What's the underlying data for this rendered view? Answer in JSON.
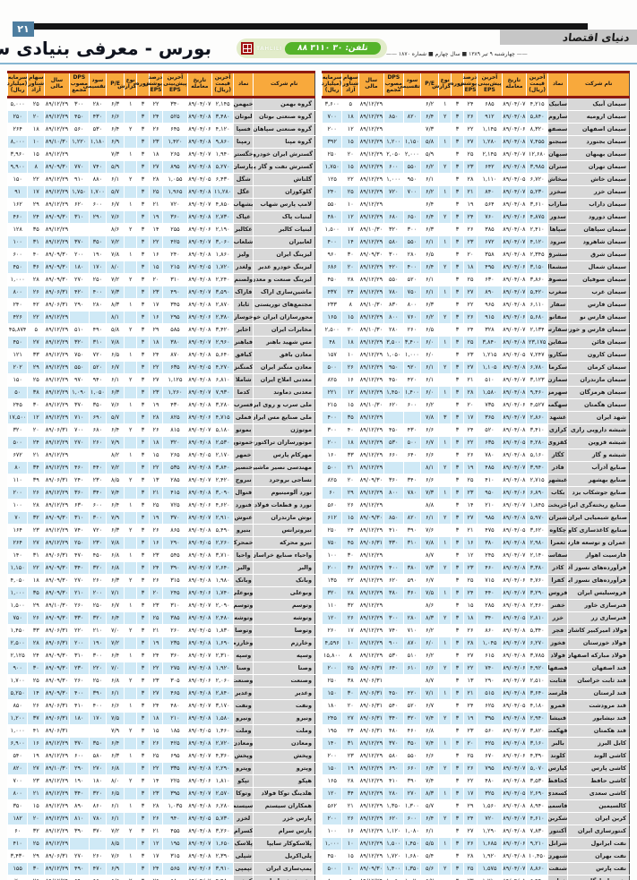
{
  "page": {
    "number": "۲۱",
    "logo": "دنیای اقتصاد",
    "dateline": "چهارشنبه ۹ تیر ۱۳۸۹ ■ سال چهارم ■ شماره ۱۸۷۰",
    "title": "بورس - معرفی بنیادی سهام",
    "phone": "تلفن: ۳۰ ۳۱۱۰ ۸۸",
    "watermark": "TAHLILI"
  },
  "colors": {
    "accent_orange": "#f8a93c",
    "dark_red": "#8e1a10",
    "row_blue": "#cfe9f6",
    "name_gray": "#d8d8d8",
    "badge_green": "#55b32a"
  },
  "table": {
    "columns": [
      {
        "label": "نام شرکت",
        "width": 20
      },
      {
        "label": "نماد",
        "width": 6.5
      },
      {
        "label": "آخرین\nقیمت\n(ریال)",
        "width": 7
      },
      {
        "label": "تاریخ\nمعامله",
        "width": 8
      },
      {
        "label": "آخرین پیش‌بینی\nEPS",
        "width": 8
      },
      {
        "label": "درصد\nپوشش\nEPS",
        "width": 4.5
      },
      {
        "label": "دوره",
        "width": 4
      },
      {
        "label": "نوع\nگزارش",
        "width": 4
      },
      {
        "label": "P/E",
        "width": 6
      },
      {
        "label": "سود\nتقسیمی",
        "width": 5.5
      },
      {
        "label": "DPS\nمصوب مجمع",
        "width": 6.5
      },
      {
        "label": "سال مالی",
        "width": 8
      },
      {
        "label": "سهام شناور\nآزاد",
        "width": 5.5
      },
      {
        "label": "سرمایه\n(میلیارد ریال)",
        "width": 6.5
      }
    ],
    "right_rows": [
      "سیمان آبیک|سابیک|۴,۲۱۵|۸۹/۰۴/۰۷|۶۸۵|۲۴|۳|۱|۶/۲|||۸۹/۱۲/۲۹|۵|۳,۶۰۰",
      "سیمان ارومیه|ساروم|۵,۸۴۰|۸۹/۰۴/۰۸|۹۱۲|۲۶|۳|۲|۶/۴|۸۲۰|۸۵۰|۸۹/۱۲/۲۹|۱۸|۷۰۰",
      "سیمان اصفهان|سصفها|۸,۳۲۰|۸۹/۰۴/۰۶|۱,۱۴۵|۲۲|۳||۷/۳|||۸۹/۱۲/۲۹|۱۲|۲۰۰",
      "سیمان بجنورد|سبجنو|۷,۴۵۵|۸۹/۰۴/۰۸|۱,۲۸۰|۲۷|۳|۱|۵/۸|۱,۱۵۰|۱,۲۰۰|۸۹/۱۲/۲۹|۱۵|۳۹۲",
      "سیمان بهبهان|سبهان|۱۲,۶۸۰|۸۹/۰۴/۰۷|۲,۱۴۵|۲۵|۳||۵/۹|۲,۰۰۰|۲,۰۵۰|۸۹/۱۲/۲۹|۲۰|۲۵۰",
      "سیمان تهران|ستران|۳,۹۸۵|۸۹/۰۴/۰۸|۶۴۲|۲۳|۳|۲|۶/۲|۵۵۰|۶۰۰|۸۹/۱۲/۲۹|۱۵|۱,۷۵۰",
      "سیمان خاش|سخاش|۶,۷۲۰|۸۹/۰۴/۰۵|۱,۱۱۰|۲۸|۳||۶/۱|۹۵۰|۱,۰۰۰|۸۹/۱۲/۲۹|۲۲|۱۲۵",
      "سیمان خزر|سخزر|۵,۲۳۰|۸۹/۰۴/۰۷|۸۴۰|۲۱|۳|۱|۶/۲|۷۰۰|۷۲۰|۸۹/۱۲/۲۹|۲۵|۲۴۰",
      "سیمان داراب|ساراب|۳,۶۱۰|۸۹/۰۴/۰۸|۵۶۴|۱۹|۳||۶/۴|||۸۹/۱۲/۲۹|۱۰|۵۵۰",
      "سیمان دورود|سدور|۴,۸۷۵|۸۹/۰۴/۰۶|۷۶۰|۲۴|۳|۲|۶/۴|۶۵۰|۶۸۰|۸۹/۱۲/۲۹|۱۲|۴۸۰",
      "سیمان سپاهان|سپاها|۲,۴۱۰|۸۹/۰۴/۰۸|۳۸۵|۲۶|۳||۶/۳|۳۰۰|۳۲۰|۸۹/۱۰/۳۰|۱۷|۱,۵۰۰",
      "سیمان شاهرود|سرود|۴,۱۲۰|۸۹/۰۴/۰۷|۶۷۲|۲۳|۳|۱|۶/۱|۵۵۰|۵۸۰|۸۹/۱۲/۲۹|۱۴|۴۰۰",
      "سیمان شرق|سشرق|۲,۳۴۵|۸۹/۰۴/۰۸|۳۵۸|۲۰|۳||۶/۵|۲۸۰|۳۰۰|۸۹/۰۹/۳۰|۳۰|۹۶۰",
      "سیمان شمال|سشمال|۳,۱۵۰|۸۹/۰۴/۰۶|۴۹۵|۱۸|۳|۲|۶/۴|۴۰۰|۴۲۰|۸۹/۱۲/۲۹|۲۰|۶۸۶",
      "سیمان صوفیان|سصوفی|۳,۸۶۰|۸۹/۰۴/۰۸|۶۳۰|۲۵|۳||۶/۱|۵۲۰|۵۵۰|۸۹/۱۲/۲۹|۲۸|۴۵۰",
      "سیمان غرب|سغرب|۵,۴۲۰|۸۹/۰۴/۰۷|۸۹۰|۲۷|۳|۱|۶/۱|۷۵۰|۷۸۰|۸۹/۱۲/۲۹|۲۴|۴۳۷",
      "سیمان فارس|سفار|۶,۱۱۰|۸۹/۰۴/۰۸|۹۶۵|۲۲|۳||۶/۳|۸۰۰|۸۳۰|۸۹/۱۰/۳۰|۸|۲۳۳",
      "سیمان فارس نو|سفانو|۵,۶۸۰|۸۹/۰۴/۰۶|۹۱۵|۲۶|۳|۲|۶/۲|۷۶۰|۸۰۰|۸۹/۱۲/۲۹|۱۵|۱۶۵",
      "سیمان فارس و خوزستان|سفارس|۲,۱۳۴|۸۹/۰۴/۰۷|۳۲۸|۲۴|۳||۶/۵|۲۶۰|۲۸۰|۸۹/۱۰/۳۰|۲۰|۲,۵۰۰",
      "سیمان قائن|سقاین|۲۳,۱۷۵|۸۹/۰۴/۰۸|۳,۸۴۰|۲۵|۳|۱|۶/۰|۳,۴۰۰|۳,۵۰۰|۸۹/۱۲/۲۹|۱۸|۴۸",
      "سیمان کارون|سکارون|۷,۲۴۷|۸۹/۰۴/۰۵|۱,۲۱۵|۲۳|۳||۶/۰|۱,۰۰۰|۱,۰۵۰|۸۹/۱۲/۲۹|۱۰|۱۵۷",
      "سیمان کرمان|سکرما|۶,۷۸۰|۸۹/۰۴/۰۸|۱,۱۰۵|۲۷|۳|۲|۶/۱|۹۲۰|۹۵۰|۸۹/۱۲/۲۹|۲۶|۵۰۰",
      "سیمان مازندران|سمازن|۳,۱۲۳|۸۹/۰۴/۰۷|۵۱۰|۲۱|۳||۶/۱|۴۲۰|۴۵۰|۸۹/۱۲/۲۹|۱۶|۸۲۵",
      "سیمان هرمزگان|سهرمز|۹,۴۶۰|۸۹/۰۴/۰۸|۱,۵۸۰|۲۸|۳|۱|۶/۰|۱,۴۰۰|۱,۴۵۰|۸۹/۱۲/۲۹|۱۲|۲۲۱",
      "سیمان هگمتان|سهگمت|۴,۵۲۷|۸۹/۰۴/۰۶|۷۳۵|۲۰|۳||۶/۲|۶۰۰|۶۲۰|۸۹/۱۰/۳۰|۱۵|۲۱۵",
      "شهد ایران|غشهد|۲,۸۶۰|۸۹/۰۴/۰۷|۳۶۵|۱۷|۳|۳|۷/۸|||۸۹/۱۲/۲۹|۳۵|۴۰۰",
      "شیشه دارویی رازی|کرازی|۳,۴۱۰|۸۹/۰۴/۰۸|۵۲۰|۲۴|۳||۶/۶|۴۳۰|۴۵۰|۸۹/۱۲/۲۹|۴۰|۳۰۰",
      "شیشه قزوین|کقزوی|۴,۲۸۰|۸۹/۰۴/۰۵|۶۳۵|۲۲|۳|۱|۶/۷|۵۰۰|۵۳۰|۸۹/۱۲/۲۹|۱۸|۲۰۰",
      "شیشه و گاز|کگاز|۵,۱۶۰|۸۹/۰۴/۰۸|۷۸۰|۲۶|۳||۶/۶|۶۴۰|۶۶۰|۸۹/۱۲/۲۹|۳۳|۱۶۰",
      "صنایع آذرآب|فاذر|۳,۹۴۰|۸۹/۰۴/۰۷|۴۸۵|۱۹|۳|۲|۸/۱|||۸۹/۱۲/۲۹|۲۱|۵۰۰",
      "صنایع بهشهر|غبشهر|۲,۷۱۵|۸۹/۰۴/۰۸|۴۱۰|۲۵|۳||۶/۶|۳۴۰|۳۶۰|۸۹/۰۹/۳۰|۲۰|۸۲۵",
      "صنایع جوشکاب یزد|بکاب|۶,۸۹۰|۸۹/۰۴/۰۶|۹۵۰|۲۳|۳|۱|۷/۳|۷۸۰|۸۰۰|۸۹/۱۲/۲۹|۲۹|۶۰",
      "صنایع ریخته‌گری ایران|خریخت|۱,۸۴۵|۸۹/۰۴/۰۷|۲۱۰|۱۴|۳||۸/۸|||۸۹/۱۲/۲۹|۲۶|۵۶۰",
      "صنایع شیمیایی ایران|شیران|۵,۹۷۰|۸۹/۰۴/۰۸|۹۸۵|۲۷|۳|۲|۶/۱|۸۲۰|۸۵۰|۸۹/۰۹/۳۰|۱۵|۶۱۲",
      "صنایع کاغذسازی کاوه|چکاوه|۳,۶۲۰|۸۹/۰۴/۰۵|۴۷۵|۲۱|۳||۷/۶|۳۹۰|۴۱۰|۸۹/۱۲/۲۹|۲۴|۲۵۰",
      "عمران و توسعه فارس|ثعمرا|۲,۹۸۰|۸۹/۰۴/۰۸|۳۸۰|۱۶|۳|۱|۷/۸|۳۱۰|۳۳۰|۸۹/۰۶/۳۱|۴۵|۷۵۰",
      "فارسیت اهواز|سفاسی|۲,۱۴۰|۸۹/۰۴/۰۷|۲۴۵|۱۲|۳||۸/۷|||۸۹/۱۲/۲۹|۳۰|۱۰۰",
      "فرآورده‌های نسوز آذر|کاذر|۳,۳۸۰|۸۹/۰۴/۰۸|۴۶۰|۲۳|۳|۲|۷/۳|۳۸۰|۴۰۰|۸۹/۱۲/۲۹|۳۶|۲۰۰",
      "فرآورده‌های نسوز ایران|کفرا|۴,۷۶۰|۸۹/۰۴/۰۶|۷۱۵|۲۵|۳||۶/۷|۵۹۰|۶۲۰|۸۹/۱۲/۲۹|۲۲|۱۳۵",
      "فروسیلیس ایران|فروس|۳,۲۹۰|۸۹/۰۴/۰۷|۴۴۰|۲۴|۳|۱|۷/۵|۳۶۰|۳۸۰|۸۹/۱۲/۲۹|۲۸|۳۲۰",
      "فنرسازی خاور|خفنر|۲,۴۶۰|۸۹/۰۴/۰۸|۲۸۵|۱۵|۳||۸/۶|||۸۹/۱۲/۲۹|۳۲|۱۱۰",
      "فنرسازی زر|خزر|۲,۸۱۰|۸۹/۰۴/۰۵|۳۴۰|۱۸|۳|۲|۸/۳|۲۸۰|۳۰۰|۸۹/۱۲/۲۹|۲۶|۱۲۰",
      "فولاد امیرکبیر کاشان|فجر|۵,۳۴۰|۸۹/۰۴/۰۸|۸۶۰|۲۶|۳||۶/۲|۷۱۰|۷۴۰|۸۹/۱۲/۲۹|۱۷|۲۶۰",
      "فولاد خوزستان|فخوز|۶,۲۷۰|۸۹/۰۴/۰۷|۱,۰۴۵|۲۸|۳|۱|۶/۰|۸۷۰|۹۰۰|۸۹/۱۲/۲۹|۱۰|۴,۵۹۶",
      "فولاد مبارکه اصفهان|فولاد|۳,۷۸۵|۸۹/۰۴/۰۸|۶۱۵|۲۷|۳||۶/۲|۵۱۰|۵۳۰|۸۹/۱۲/۲۹|۸|۱۵,۸۰۰",
      "قند اصفهان|قصفها|۴,۹۲۰|۸۹/۰۴/۰۶|۷۴۰|۲۲|۳|۲|۶/۶|۶۱۰|۶۴۰|۸۹/۰۶/۳۱|۲۵|۲۰۰",
      "قند ثابت خراسان|قثابت|۲,۵۱۰|۸۹/۰۴/۰۷|۲۹۰|۱۳|۳||۸/۷|||۸۹/۰۶/۳۱|۳۸|۲۵۰",
      "قند لرستان|قلرست|۳,۶۴۰|۸۹/۰۴/۰۸|۵۱۵|۲۱|۳|۱|۷/۱|۴۲۰|۴۵۰|۸۹/۰۶/۳۱|۳۰|۱۵۰",
      "قند مرودشت|قمرو|۴,۱۸۰|۸۹/۰۴/۰۵|۶۲۵|۲۴|۳||۶/۷|۵۲۰|۵۴۰|۸۹/۰۶/۳۱|۲۰|۱۸۰",
      "قند نیشابور|قنیشا|۲,۹۴۰|۸۹/۰۴/۰۸|۳۹۵|۱۹|۳|۲|۷/۴|۳۲۰|۳۴۰|۸۹/۰۶/۳۱|۲۷|۲۴۵",
      "قند هکمتان|قهکمت|۳,۸۲۰|۸۹/۰۴/۰۷|۵۶۰|۲۳|۳||۶/۸|۴۶۰|۴۸۰|۸۹/۰۶/۳۱|۲۴|۱۹۵",
      "کابل البرز|بالبر|۳,۱۶۰|۸۹/۰۴/۰۸|۴۲۵|۲۰|۳|۱|۷/۴|۳۵۰|۳۷۰|۸۹/۱۲/۲۹|۳۱|۱۴۰",
      "کاشی الوند|کلوند|۴,۳۹۰|۸۹/۰۴/۰۶|۶۷۰|۲۵|۳||۶/۶|۵۵۰|۵۸۰|۸۹/۱۲/۲۹|۲۳|۲۰۰",
      "کاشی پارس|کپارس|۵,۰۷۰|۸۹/۰۴/۰۷|۷۹۵|۲۶|۳|۲|۶/۴|۶۶۰|۶۹۰|۸۹/۱۲/۲۹|۱۹|۱۵۰",
      "کاشی حافظ|کحافظ|۳,۵۳۰|۸۹/۰۴/۰۸|۴۸۰|۲۲|۳||۷/۴|۳۹۰|۴۱۰|۸۹/۱۲/۲۹|۲۸|۱۶۵",
      "کاشی سعدی|کسعدی|۲,۶۹۰|۸۹/۰۴/۰۵|۳۲۵|۱۷|۳|۱|۸/۳|۲۷۰|۲۸۰|۸۹/۱۲/۲۹|۳۴|۱۲۰",
      "کالسیمین|فاسمین|۸,۹۴۰|۸۹/۰۴/۰۸|۱,۵۶۰|۲۹|۳||۵/۷|۱,۳۰۰|۱,۳۵۰|۸۹/۱۲/۲۹|۲۱|۵۶۲",
      "کربن ایران|شکربن|۴,۶۱۰|۸۹/۰۴/۰۷|۷۲۰|۲۴|۳|۲|۶/۴|۶۰۰|۶۲۰|۸۹/۱۲/۲۹|۲۶|۲۰۰",
      "کنتورسازی ایران|آکنتور|۷,۸۳۰|۸۹/۰۴/۰۸|۱,۲۹۰|۲۷|۳||۶/۱|۱,۰۸۰|۱,۱۲۰|۸۹/۱۲/۲۹|۱۶|۱۰۰",
      "نفت ایرانول|شرانل|۹,۲۱۰|۸۹/۰۴/۰۶|۱,۶۸۵|۲۶|۳|۱|۵/۵|۱,۴۵۰|۱,۵۰۰|۸۹/۱۲/۲۹|۱۰|۱,۰۰۰",
      "نفت بهران|شبهرن|۱۰,۴۵۰|۸۹/۰۴/۰۸|۱,۹۲۰|۲۸|۳||۵/۴|۱,۶۸۰|۱,۷۲۰|۸۹/۱۲/۲۹|۱۵|۴۵۰",
      "نفت پارس|شنفت|۸,۸۶۰|۸۹/۰۴/۰۷|۱,۵۷۵|۲۵|۳|۲|۵/۶|۱,۳۵۰|۱,۴۰۰|۸۹/۰۹/۳۰|۱۰|۵۰۰",
      "نفت پاسارگاد|شپاس|۶,۹۴۰|۸۹/۰۴/۰۸|۱,۲۱۰|۲۳|۳||۵/۷|۱,۰۲۰|۱,۰۶۰|۸۹/۱۲/۲۹|۵|۸۰۰",
      "نفت سپاهان|شسپا|۷,۶۲۰|۸۹/۰۴/۰۵|۱,۳۶۵|۲۷|۳|۱|۵/۶|۱,۱۵۰|۱,۲۰۰|۸۹/۱۲/۲۹|۱۰|۶۶۰"
    ],
    "left_rows": [
      "گروه بهمن|خبهمن|۲,۱۴۵|۸۹/۰۴/۰۷|۳۴۰|۲۲|۳|۱|۶/۳|۲۸۰|۳۰۰|۸۹/۱۲/۲۹|۲۵|۵,۰۰۰",
      "گروه صنعتی بوتان|لبوتان|۳,۴۸۰|۸۹/۰۴/۰۸|۵۲۵|۲۴|۳||۶/۶|۴۳۰|۴۵۰|۸۹/۱۲/۲۹|۲۰|۲۵۰",
      "گروه صنعتی سپاهان|فسپا|۴,۱۲۰|۸۹/۰۴/۰۶|۶۴۵|۲۶|۳|۲|۶/۴|۵۳۰|۵۶۰|۸۹/۱۲/۲۹|۱۸|۲۶۴",
      "گروه مپنا|رمپنا|۹,۸۶۰|۸۹/۰۴/۰۸|۱,۴۲۰|۲۳|۳||۶/۹|۱,۱۸۰|۱,۲۲۰|۸۹/۱۰/۳۰|۱۰|۸,۰۰۰",
      "گسترش ایران خودرو|خگستر|۱,۹۴۰|۸۹/۰۴/۰۷|۲۶۵|۱۸|۳|۱|۷/۳|||۸۹/۱۲/۲۹|۱۵|۳,۹۶۰",
      "گسترش نفت و گاز پارسیان|پارسان|۵,۲۷۰|۸۹/۰۴/۰۸|۸۹۵|۲۷|۳||۵/۹|۷۴۰|۷۷۰|۸۹/۰۹/۳۰|۸|۹,۹۰۰",
      "گلتاش|شگل|۶,۴۳۰|۸۹/۰۴/۰۵|۱,۰۵۵|۲۸|۳|۲|۶/۱|۸۸۰|۹۱۰|۸۹/۱۲/۲۹|۲۲|۱۵۰",
      "گلوکوزان|غگل|۱۱,۲۸۰|۸۹/۰۴/۰۸|۱,۹۶۵|۲۵|۳||۵/۷|۱,۷۰۰|۱,۷۵۰|۸۹/۱۲/۲۹|۱۷|۹۱",
      "لامپ پارس شهاب|بشهاب|۴,۸۵۰|۸۹/۰۴/۰۷|۷۲۰|۲۱|۳|۱|۶/۷|۶۰۰|۶۲۰|۸۹/۱۲/۲۹|۲۹|۱۶۲",
      "لبنیات پاک|غپاک|۲,۷۳۰|۸۹/۰۴/۰۸|۳۶۰|۱۹|۳||۷/۶|۲۹۰|۳۱۰|۸۹/۰۹/۳۰|۲۴|۴۶۰",
      "لبنیات کالبر|غکالبر|۲,۱۹۰|۸۹/۰۴/۰۶|۲۵۵|۱۴|۳|۲|۸/۶|||۸۹/۱۲/۲۹|۳۵|۱۲۸",
      "لعابیران|شلعاب|۳,۰۶۰|۸۹/۰۴/۰۷|۴۲۵|۲۲|۳||۷/۲|۳۵۰|۳۷۰|۸۹/۱۲/۲۹|۳۱|۱۰۰",
      "لیزینگ ایران|ولیز|۱,۸۶۰|۸۹/۰۴/۰۸|۲۴۰|۱۶|۳|۱|۷/۸|۱۹۰|۲۰۰|۸۹/۰۹/۳۰|۴۰|۶۰۰",
      "لیزینگ خودرو غدیر|ولغدر|۱,۷۲۰|۸۹/۰۴/۰۵|۲۱۵|۱۵|۳||۸/۰|۱۷۰|۱۸۰|۸۹/۰۹/۳۰|۳۶|۴۵۰",
      "لیزینگ صنعت و معدن|ولصنم|۲,۲۴۰|۸۹/۰۴/۰۸|۳۱۰|۲۰|۳|۲|۷/۲|۲۵۰|۲۷۰|۸۹/۰۹/۳۰|۲۸|۱,۰۰۰",
      "ماشین‌سازی اراک|فاراک|۳,۵۹۰|۸۹/۰۴/۰۷|۴۹۰|۲۳|۳||۷/۳|۴۰۰|۴۲۰|۸۹/۰۶/۳۱|۲۶|۸۰۰",
      "مجتمع‌های توریستی آبادگران|ثاباد|۲,۸۷۰|۸۹/۰۴/۰۸|۳۴۵|۱۷|۳|۱|۸/۳|۲۸۰|۲۹۰|۸۹/۰۶/۳۱|۴۲|۲۴۰",
      "محورسازان ایران خودرو|خوساز|۲,۳۸۰|۸۹/۰۴/۰۶|۲۹۵|۱۶|۳||۸/۱|||۸۹/۱۲/۲۹|۲۲|۴۲۶",
      "مخابرات ایران|اخابر|۳,۴۲۰|۸۹/۰۴/۰۸|۵۸۵|۲۹|۳|۲|۵/۸|۴۹۰|۵۱۰|۸۹/۱۲/۲۹|۵|۴۵,۸۷۴",
      "مس شهید باهنر|فباهنر|۲,۹۶۰|۸۹/۰۴/۰۷|۳۸۰|۱۸|۳||۷/۸|۳۱۰|۳۲۰|۸۹/۱۲/۲۹|۲۷|۴۵۰",
      "معادن بافق|کبافق|۵,۶۴۰|۸۹/۰۴/۰۸|۸۷۰|۲۴|۳|۱|۶/۵|۷۲۰|۷۵۰|۸۹/۱۲/۲۹|۳۳|۱۲۱",
      "معادن منگنز ایران|کمنگنز|۴,۲۷۰|۸۹/۰۴/۰۵|۶۳۵|۲۲|۳||۶/۷|۵۲۰|۵۵۰|۸۹/۱۲/۲۹|۲۹|۲۰۲",
      "معدنی املاح ایران|شاملا|۶,۸۱۰|۸۹/۰۴/۰۸|۱,۱۲۵|۲۷|۳|۲|۶/۱|۹۴۰|۹۷۰|۸۹/۱۲/۲۹|۲۵|۱۵۰",
      "معدنی دماوند|کدما|۷,۹۳۰|۸۹/۰۴/۰۷|۱,۲۶۰|۲۳|۳||۶/۳|۱,۰۵۰|۱,۰۹۰|۸۹/۱۲/۲۹|۳۸|۵۰",
      "ملی سرب و روی ایران|فسرب|۳,۲۸۰|۸۹/۰۴/۰۸|۴۳۰|۱۹|۳|۱|۷/۶|۳۵۰|۳۷۰|۸۹/۱۲/۲۹|۳۰|۲۴۵",
      "ملی صنایع مس ایران|فملی|۴,۷۱۵|۸۹/۰۴/۰۶|۸۲۵|۲۸|۳||۵/۷|۶۹۰|۷۱۰|۸۹/۱۲/۲۹|۱۲|۱۷,۵۰۰",
      "موتوژن|بموتو|۵,۱۸۰|۸۹/۰۴/۰۷|۸۱۵|۲۶|۳|۲|۶/۴|۶۸۰|۷۰۰|۸۹/۰۶/۳۱|۲۰|۳۲۰",
      "موتورسازان تراکتورسازی|خموتور|۲,۵۳۰|۸۹/۰۴/۰۸|۳۲۰|۱۸|۳||۷/۹|۲۶۰|۲۷۰|۸۹/۱۲/۲۹|۲۴|۵۰۰",
      "مهرکام پارس|خمهر|۲,۱۷۰|۸۹/۰۴/۰۵|۲۶۵|۱۵|۳|۱|۸/۲|||۸۹/۱۲/۲۹|۲۱|۶۷۲",
      "مهندسی نصیر ماشین|خنصیر|۳,۸۴۰|۸۹/۰۴/۰۸|۵۳۵|۲۲|۳||۷/۲|۴۴۰|۴۶۰|۸۹/۱۲/۲۹|۳۴|۸۰",
      "نساجی بروجرد|نبروج|۲,۴۲۰|۸۹/۰۴/۰۷|۲۸۵|۱۳|۳|۲|۸/۵|۲۳۰|۲۴۰|۸۹/۰۶/۳۱|۳۹|۱۱۰",
      "نورد آلومینیوم|فنوال|۳,۰۹۰|۸۹/۰۴/۰۸|۴۱۵|۲۱|۳||۷/۴|۳۴۰|۳۶۰|۸۹/۱۲/۲۹|۲۶|۲۰۰",
      "نورد و قطعات فولادی|فنورد|۴,۶۲۰|۸۹/۰۴/۰۶|۷۲۵|۲۵|۳|۱|۶/۴|۶۰۰|۶۳۰|۸۹/۱۲/۲۹|۲۸|۱۰۰",
      "نوش مازندران|غنوش|۲,۹۱۰|۸۹/۰۴/۰۷|۳۷۰|۱۹|۳||۷/۹|۳۰۰|۳۱۰|۸۹/۰۹/۳۰|۳۲|۷۰",
      "نیروترانس|بنیرو|۵,۴۹۰|۸۹/۰۴/۰۸|۸۶۵|۲۶|۳|۲|۶/۳|۷۲۰|۷۴۰|۸۹/۱۲/۲۹|۲۳|۱۶۴",
      "نیرو محرکه|خمحرکه|۲,۲۶۰|۸۹/۰۴/۰۵|۲۹۰|۱۶|۳||۷/۸|۲۳۰|۲۵۰|۸۹/۱۲/۲۹|۲۷|۲۶۴",
      "واحیاء صنایع خراسان|واحیا|۳,۷۱۰|۸۹/۰۴/۰۸|۵۴۵|۲۳|۳|۱|۶/۸|۴۵۰|۴۷۰|۸۹/۰۶/۳۱|۳۱|۱۴۰",
      "والبر|والبر|۲,۶۴۰|۸۹/۰۴/۰۷|۳۹۰|۲۴|۳||۶/۸|۳۲۰|۳۴۰|۸۹/۰۹/۳۰|۲۲|۱,۱۵۰",
      "وبانک|وبانک|۱,۹۸۰|۸۹/۰۴/۰۸|۳۱۵|۲۶|۳|۲|۶/۳|۲۶۰|۲۷۰|۸۹/۰۹/۳۰|۱۸|۴,۰۵۰",
      "وبوعلی|وبوعلی|۱,۷۴۰|۸۹/۰۴/۰۶|۲۴۵|۲۰|۳||۷/۱|۲۰۰|۲۱۰|۸۹/۰۹/۳۰|۳۵|۱,۰۰۰",
      "وتوسم|وتوسم|۲,۰۹۰|۸۹/۰۴/۰۷|۳۱۰|۲۳|۳|۱|۶/۷|۲۵۰|۲۶۰|۸۹/۱۰/۳۰|۲۹|۱,۵۰۰",
      "وتوشه|وتوشه|۲,۴۸۰|۸۹/۰۴/۰۸|۳۸۵|۲۵|۳||۶/۴|۳۲۰|۳۳۰|۸۹/۰۹/۳۰|۲۶|۷۵۰",
      "وتوصا|وتوصا|۱,۸۳۰|۸۹/۰۴/۰۵|۲۶۰|۲۱|۳|۲|۷/۰|۲۱۰|۲۲۰|۸۹/۰۶/۳۱|۳۳|۱,۴۵۰",
      "وخارزم|وخارزم|۱,۶۹۰|۸۹/۰۴/۰۸|۲۳۵|۱۹|۳||۷/۲|۱۹۰|۲۰۰|۸۹/۰۶/۳۱|۲۸|۲,۵۰۰",
      "وسپه|وسپه|۲,۳۱۰|۸۹/۰۴/۰۷|۳۶۰|۲۴|۳|۱|۶/۴|۳۰۰|۳۱۰|۸۹/۰۹/۳۰|۲۴|۲,۱۲۵",
      "وصنا|وصنا|۱,۹۲۰|۸۹/۰۴/۰۸|۲۷۵|۲۲|۳||۷/۰|۲۲۰|۲۳۰|۸۹/۰۹/۳۰|۳۰|۹۰۰",
      "وصنعت|وصنعت|۲,۰۶۰|۸۹/۰۴/۰۶|۳۰۵|۲۳|۳|۲|۶/۸|۲۵۰|۲۶۰|۸۹/۰۹/۳۰|۲۵|۱,۷۰۰",
      "وغدیر|وغدیر|۲,۸۴۰|۸۹/۰۴/۰۸|۴۶۵|۲۷|۳||۶/۱|۳۹۰|۴۰۰|۸۹/۰۹/۳۰|۱۴|۵,۲۵۰",
      "ونفت|ونفت|۳,۱۷۰|۸۹/۰۴/۰۷|۴۸۰|۲۴|۳|۱|۶/۶|۴۰۰|۴۱۰|۸۹/۰۶/۳۱|۲۶|۸۵۰",
      "ونیرو|ونیرو|۱,۵۸۰|۸۹/۰۴/۰۸|۲۱۰|۱۸|۳||۷/۵|۱۷۰|۱۸۰|۸۹/۰۶/۳۱|۳۷|۱,۲۰۰",
      "وملت|وملت|۱,۴۶۰|۸۹/۰۴/۰۵|۱۸۵|۱۵|۳|۲|۷/۹|||۸۹/۰۶/۳۱|۴۱|۱,۰۰۰",
      "ومعادن|ومعادن|۲,۷۲۰|۸۹/۰۴/۰۸|۴۲۵|۲۶|۳||۶/۴|۳۵۰|۳۷۰|۸۹/۱۲/۲۹|۱۶|۶,۹۰۰",
      "وپخش|وپخش|۴,۳۶۰|۸۹/۰۴/۰۷|۶۹۵|۲۵|۳|۱|۶/۳|۵۸۰|۶۰۰|۸۹/۱۲/۲۹|۱۹|۵۴۰",
      "وپترو|وپترو|۲,۲۹۰|۸۹/۰۴/۰۸|۳۳۵|۲۲|۳||۶/۸|۲۷۰|۲۹۰|۸۹/۱۰/۳۰|۲۷|۸۲۰",
      "هپکو|تپکو|۱,۸۱۰|۸۹/۰۴/۰۶|۲۲۵|۱۴|۳|۲|۸/۰|۱۸۰|۱۹۰|۸۹/۱۲/۲۹|۲۳|۷۰۰",
      "هلدینگ توکا فولاد|وتوکا|۲,۵۷۰|۸۹/۰۴/۰۷|۳۹۵|۲۳|۳||۶/۵|۳۲۰|۳۴۰|۸۹/۱۲/۲۹|۲۱|۸۰۰",
      "همکاران سیستم|سیستم|۶,۲۸۰|۸۹/۰۴/۰۸|۱,۰۳۵|۲۸|۳|۱|۶/۱|۸۶۰|۸۹۰|۸۹/۱۲/۲۹|۱۵|۳۵۰",
      "پارس خزر|لخزر|۵,۷۳۰|۸۹/۰۴/۰۵|۹۴۰|۲۶|۳||۶/۱|۷۸۰|۸۱۰|۸۹/۱۲/۲۹|۲۰|۱۸۲",
      "پارس سرام|کسرام|۳,۲۶۰|۸۹/۰۴/۰۸|۴۵۵|۲۱|۳|۲|۷/۲|۳۷۰|۳۹۰|۸۹/۱۲/۲۹|۳۲|۶۰",
      "پلاسکوکار سایپا|پلاسک|۱,۶۵۰|۸۹/۰۴/۰۷|۱۹۵|۱۲|۳||۸/۵|||۸۹/۱۲/۲۹|۲۵|۴۱۰",
      "پلی‌اکریل|شپلی|۲,۳۹۰|۸۹/۰۴/۰۸|۳۱۵|۱۷|۳|۱|۷/۶|۲۶۰|۲۷۰|۸۹/۰۶/۳۱|۲۹|۳,۴۳۰",
      "پمپ‌سازی ایران|تپمپی|۳,۹۱۰|۸۹/۰۴/۰۶|۵۶۵|۲۴|۳||۶/۹|۴۷۰|۴۹۰|۸۹/۱۲/۲۹|۳۰|۱۵۵",
      "پشم‌شیشه ایران|کپشیر|۴,۴۸۰|۸۹/۰۴/۰۷|۶۸۰|۲۵|۳|۲|۶/۶|۵۶۰|۵۹۰|۸۹/۱۲/۲۹|۲۶|۷۰",
      "پگاه اصفهان|غشصفا|۲,۸۲۰|۸۹/۰۴/۰۸|۳۷۵|۲۰|۳||۷/۵|۳۱۰|۳۲۰|۸۹/۱۲/۲۹|۲۲|۱۰۰"
    ]
  }
}
